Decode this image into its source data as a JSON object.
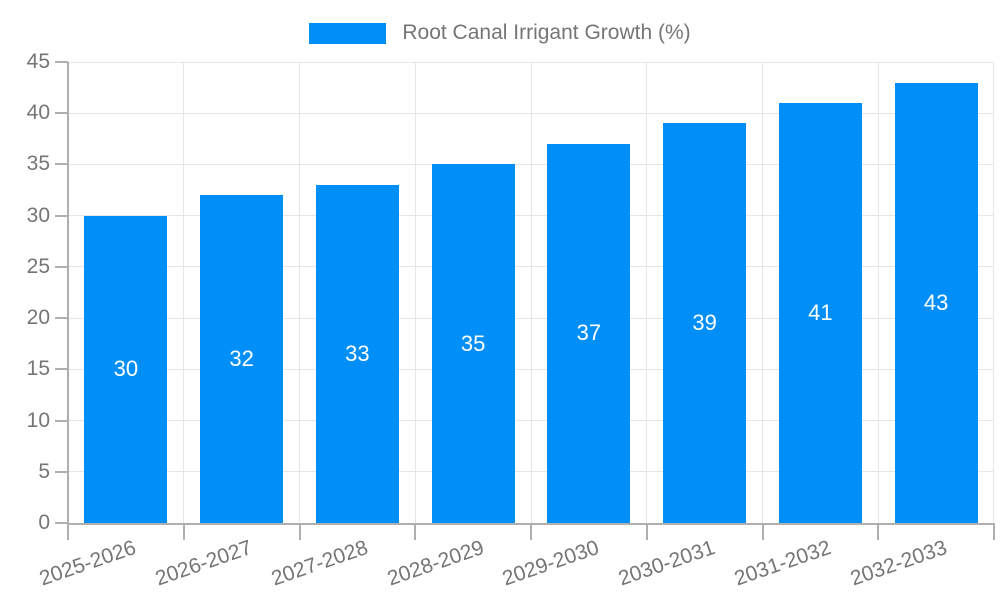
{
  "legend": {
    "items": [
      {
        "label": "Root Canal Irrigant Growth (%)",
        "color": "#008FF9"
      }
    ]
  },
  "chart_data": {
    "type": "bar",
    "title": "Root Canal Irrigant Growth (%)",
    "categories": [
      "2025-2026",
      "2026-2027",
      "2027-2028",
      "2028-2029",
      "2029-2030",
      "2030-2031",
      "2031-2032",
      "2032-2033"
    ],
    "series": [
      {
        "name": "Root Canal Irrigant Growth (%)",
        "values": [
          30,
          32,
          33,
          35,
          37,
          39,
          41,
          43
        ]
      }
    ],
    "bar_value_labels": [
      "30",
      "32",
      "33",
      "35",
      "37",
      "39",
      "41",
      "43"
    ],
    "xlabel": "",
    "ylabel": "",
    "ylim": [
      0,
      45
    ],
    "yticks": [
      0,
      5,
      10,
      15,
      20,
      25,
      30,
      35,
      40,
      45
    ],
    "grid": true,
    "legend_position": "top-center",
    "colors": {
      "bar": "#008FF9",
      "bar_label": "#FFFFFF",
      "axis": "#AFAFAF",
      "grid": "#E6E6E6",
      "tick_label": "#757575",
      "background": "#FFFFFF"
    }
  }
}
